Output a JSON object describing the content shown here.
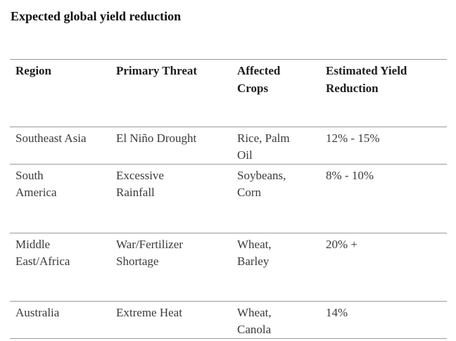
{
  "title": "Expected global yield reduction",
  "table": {
    "headers": {
      "region": "Region",
      "threat": "Primary Threat",
      "crops": "Affected\nCrops",
      "reduction": "Estimated Yield\nReduction"
    },
    "rows": [
      {
        "region": "Southeast Asia",
        "threat": "El Niño Drought",
        "crops": "Rice, Palm\nOil",
        "reduction": "12% - 15%"
      },
      {
        "region": "South\nAmerica",
        "threat": "Excessive\nRainfall",
        "crops": "Soybeans,\nCorn",
        "reduction": "8% - 10%"
      },
      {
        "region": "Middle\nEast/Africa",
        "threat": "War/Fertilizer\nShortage",
        "crops": "Wheat,\nBarley",
        "reduction": "20% +"
      },
      {
        "region": "Australia",
        "threat": "Extreme Heat",
        "crops": "Wheat,\nCanola",
        "reduction": "14%"
      }
    ]
  },
  "colors": {
    "rule_line": "#9a9a9a",
    "heading_text": "#1c1c1c",
    "body_text": "#3b3b3b",
    "background": "#ffffff"
  }
}
